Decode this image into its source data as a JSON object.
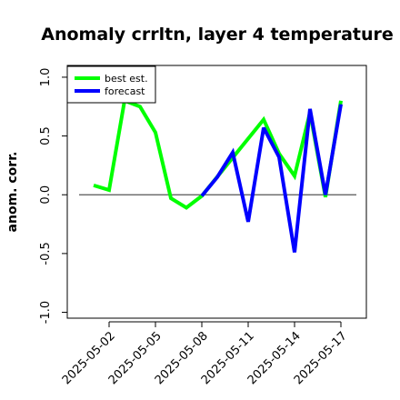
{
  "chart_data": {
    "type": "line",
    "title": "Anomaly crrltn, layer 4 temperature",
    "xlabel": "",
    "ylabel": "anom. corr.",
    "x": [
      "2025-05-01",
      "2025-05-02",
      "2025-05-03",
      "2025-05-04",
      "2025-05-05",
      "2025-05-06",
      "2025-05-07",
      "2025-05-08",
      "2025-05-09",
      "2025-05-10",
      "2025-05-11",
      "2025-05-12",
      "2025-05-13",
      "2025-05-14",
      "2025-05-15",
      "2025-05-16",
      "2025-05-17"
    ],
    "x_tick_labels": [
      "2025-05-02",
      "2025-05-05",
      "2025-05-08",
      "2025-05-11",
      "2025-05-14",
      "2025-05-17"
    ],
    "highlight_tick": "2025-05-08",
    "highlight_color": "#228b22",
    "ylim": [
      -1.05,
      1.1
    ],
    "y_ticks": [
      "-1.0",
      "-0.5",
      "0.0",
      "0.5",
      "1.0"
    ],
    "y_tick_values": [
      -1.0,
      -0.5,
      0.0,
      0.5,
      1.0
    ],
    "zero_line": 0.0,
    "grid": false,
    "legend_position": "top-left",
    "series": [
      {
        "name": "best est.",
        "color": "#00ff00",
        "values": [
          0.08,
          0.04,
          0.8,
          0.75,
          0.53,
          -0.03,
          -0.11,
          -0.01,
          null,
          null,
          null,
          0.64,
          0.35,
          0.16,
          0.7,
          -0.02,
          0.8
        ]
      },
      {
        "name": "forecast",
        "color": "#0000ff",
        "values": [
          null,
          null,
          null,
          null,
          null,
          null,
          null,
          -0.01,
          0.15,
          0.36,
          -0.23,
          0.57,
          0.32,
          -0.49,
          0.73,
          0.0,
          0.77
        ]
      }
    ]
  }
}
